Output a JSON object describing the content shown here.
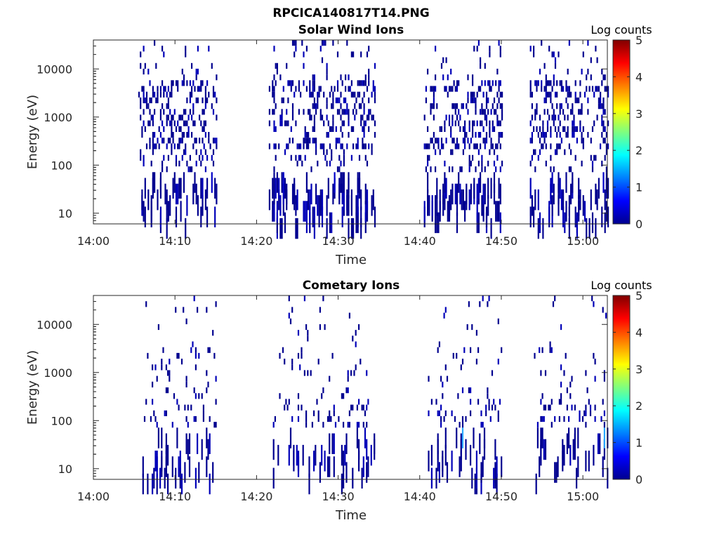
{
  "figure": {
    "title": "RPCICA140817T14.PNG"
  },
  "chart_data": [
    {
      "type": "heatmap",
      "title": "Solar Wind Ions",
      "xlabel": "Time",
      "ylabel": "Energy (eV)",
      "x_ticks": [
        "14:00",
        "14:10",
        "14:20",
        "14:30",
        "14:40",
        "14:50",
        "15:00"
      ],
      "y_ticks": [
        "10",
        "100",
        "1000",
        "10000"
      ],
      "y_scale": "log",
      "ylim": [
        6,
        40000
      ],
      "colorbar": {
        "label": "Log counts",
        "ticks": [
          "0",
          "1",
          "2",
          "3",
          "4",
          "5"
        ],
        "range": [
          0,
          5
        ]
      },
      "active_intervals_min": [
        [
          5.5,
          15
        ],
        [
          21.5,
          34.5
        ],
        [
          40.5,
          50
        ],
        [
          53.5,
          63
        ]
      ]
    },
    {
      "type": "heatmap",
      "title": "Cometary Ions",
      "xlabel": "Time",
      "ylabel": "Energy (eV)",
      "x_ticks": [
        "14:00",
        "14:10",
        "14:20",
        "14:30",
        "14:40",
        "14:50",
        "15:00"
      ],
      "y_ticks": [
        "10",
        "100",
        "1000",
        "10000"
      ],
      "y_scale": "log",
      "ylim": [
        6,
        40000
      ],
      "colorbar": {
        "label": "Log counts",
        "ticks": [
          "0",
          "1",
          "2",
          "3",
          "4",
          "5"
        ],
        "range": [
          0,
          5
        ]
      },
      "active_intervals_min": [
        [
          6,
          15
        ],
        [
          22,
          34.5
        ],
        [
          41,
          50
        ],
        [
          54,
          63
        ]
      ]
    }
  ]
}
